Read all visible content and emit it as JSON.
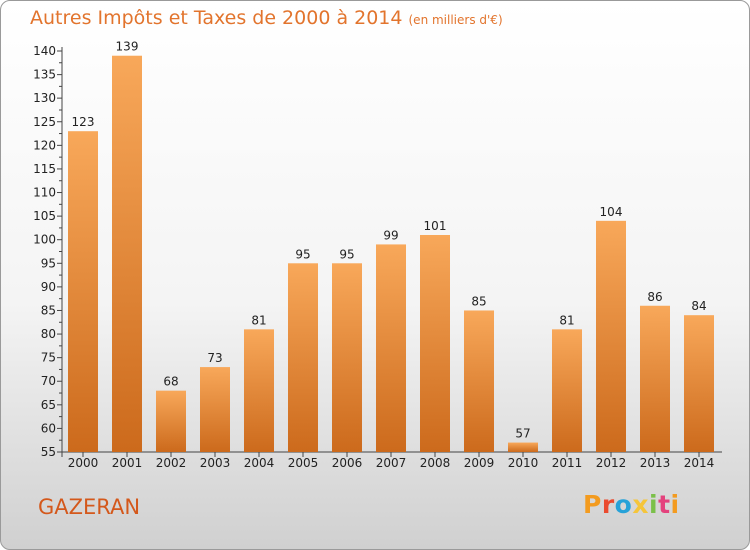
{
  "header": {
    "title": "Autres Impôts et Taxes de 2000 à 2014",
    "unit": "(en milliers d'€)"
  },
  "footer": {
    "commune": "GAZERAN",
    "logo_text": "Proxiti"
  },
  "colors": {
    "title": "#e2742d",
    "commune": "#d4581b",
    "bar_top": "#f8a85a",
    "bar_bottom": "#cc6a1c",
    "logo_letters": [
      "#f39b1f",
      "#ea4b2f",
      "#27a2d8",
      "#f5c53a",
      "#7bc04a",
      "#e4427d",
      "#f39b1f"
    ]
  },
  "chart_data": {
    "type": "bar",
    "title": "Autres Impôts et Taxes de 2000 à 2014",
    "subtitle": "(en milliers d'€)",
    "categories": [
      "2000",
      "2001",
      "2002",
      "2003",
      "2004",
      "2005",
      "2006",
      "2007",
      "2008",
      "2009",
      "2010",
      "2011",
      "2012",
      "2013",
      "2014"
    ],
    "values": [
      123,
      139,
      68,
      73,
      81,
      95,
      95,
      99,
      101,
      85,
      57,
      81,
      104,
      86,
      84
    ],
    "y_ticks": [
      55,
      60,
      65,
      70,
      75,
      80,
      85,
      90,
      95,
      100,
      105,
      110,
      115,
      120,
      125,
      130,
      135,
      140
    ],
    "ylim": [
      55,
      140
    ],
    "grid": false,
    "legend": "none"
  }
}
